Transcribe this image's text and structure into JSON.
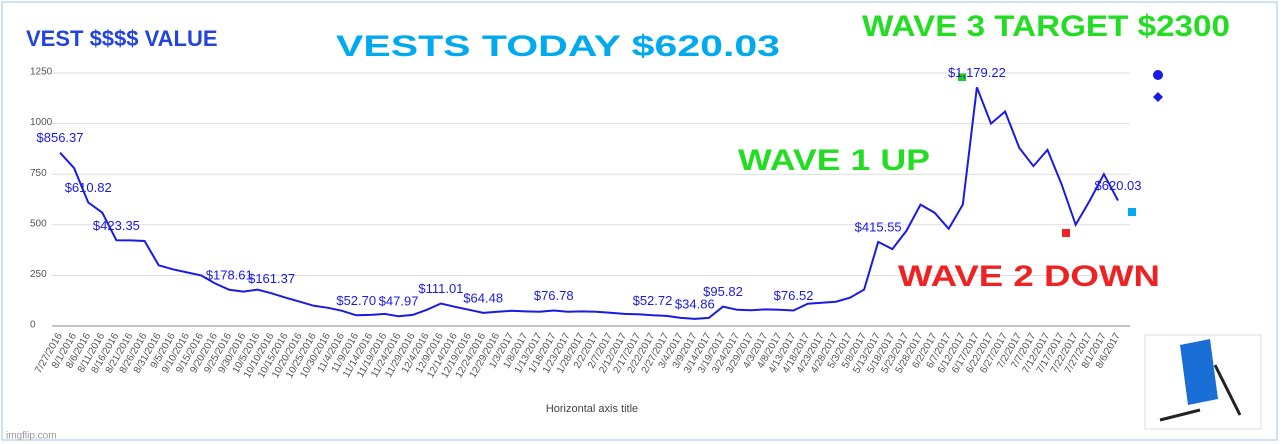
{
  "chart_data": {
    "type": "line",
    "title": "VEST $$$$ VALUE",
    "x_label": "Horizontal axis title",
    "categories": [
      "7/27/2016",
      "8/1/2016",
      "8/6/2016",
      "8/11/2016",
      "8/16/2016",
      "8/21/2016",
      "8/26/2016",
      "8/31/2016",
      "9/5/2016",
      "9/10/2016",
      "9/15/2016",
      "9/20/2016",
      "9/25/2016",
      "9/30/2016",
      "10/5/2016",
      "10/10/2016",
      "10/15/2016",
      "10/20/2016",
      "10/25/2016",
      "10/30/2016",
      "11/4/2016",
      "11/9/2016",
      "11/14/2016",
      "11/19/2016",
      "11/24/2016",
      "11/29/2016",
      "12/4/2016",
      "12/9/2016",
      "12/14/2016",
      "12/19/2016",
      "12/24/2016",
      "12/29/2016",
      "1/3/2017",
      "1/8/2017",
      "1/13/2017",
      "1/18/2017",
      "1/23/2017",
      "1/28/2017",
      "2/2/2017",
      "2/7/2017",
      "2/12/2017",
      "2/17/2017",
      "2/22/2017",
      "2/27/2017",
      "3/4/2017",
      "3/9/2017",
      "3/14/2017",
      "3/19/2017",
      "3/24/2017",
      "3/29/2017",
      "4/3/2017",
      "4/8/2017",
      "4/13/2017",
      "4/18/2017",
      "4/23/2017",
      "4/28/2017",
      "5/3/2017",
      "5/8/2017",
      "5/13/2017",
      "5/18/2017",
      "5/23/2017",
      "5/28/2017",
      "6/2/2017",
      "6/7/2017",
      "6/12/2017",
      "6/17/2017",
      "6/22/2017",
      "6/27/2017",
      "7/2/2017",
      "7/7/2017",
      "7/12/2017",
      "7/17/2017",
      "7/22/2017",
      "7/27/2017",
      "8/1/2017",
      "8/6/2017"
    ],
    "values": [
      856.37,
      780,
      610.82,
      560,
      423.35,
      423,
      420,
      300,
      280,
      265,
      250,
      210,
      178.61,
      170,
      180,
      161.37,
      140,
      120,
      100,
      90,
      75,
      52.7,
      55,
      60,
      47.97,
      55,
      80,
      111.01,
      95,
      80,
      64.48,
      70,
      75,
      72,
      70,
      76.78,
      70,
      72,
      70,
      65,
      60,
      58,
      52.72,
      50,
      40,
      34.86,
      40,
      95.82,
      80,
      78,
      82,
      80,
      76.52,
      110,
      115,
      120,
      140,
      180,
      415.55,
      380,
      470,
      600,
      560,
      480,
      600,
      1179.22,
      1000,
      1060,
      880,
      790,
      870,
      700,
      500,
      620,
      750,
      620.03
    ],
    "value_labels": [
      "$856.37",
      null,
      "$610.82",
      null,
      "$423.35",
      null,
      null,
      null,
      null,
      null,
      null,
      null,
      "$178.61",
      null,
      null,
      "$161.37",
      null,
      null,
      null,
      null,
      null,
      "$52.70",
      null,
      null,
      "$47.97",
      null,
      null,
      "$111.01",
      null,
      null,
      "$64.48",
      null,
      null,
      null,
      null,
      "$76.78",
      null,
      null,
      null,
      null,
      null,
      null,
      "$52.72",
      null,
      null,
      "$34.86",
      null,
      "$95.82",
      null,
      null,
      null,
      null,
      "$76.52",
      null,
      null,
      null,
      null,
      null,
      "$415.55",
      null,
      null,
      null,
      null,
      null,
      null,
      "$1,179.22",
      null,
      null,
      null,
      null,
      null,
      null,
      null,
      null,
      null,
      "$620.03"
    ],
    "color": "#1a1ae6",
    "ylim": [
      0,
      1250
    ],
    "yticks": [
      0,
      250,
      500,
      750,
      1000,
      1250
    ],
    "grid": true,
    "annotations": [
      {
        "text": "VESTS TODAY  $620.03",
        "color": "#00aaee"
      },
      {
        "text": "WAVE  3  TARGET   $2300",
        "color": "#22dd22"
      },
      {
        "text": "WAVE 1 UP",
        "color": "#22dd22"
      },
      {
        "text": "WAVE  2  DOWN",
        "color": "#ee2222"
      }
    ]
  },
  "watermark": "imgflip.com"
}
